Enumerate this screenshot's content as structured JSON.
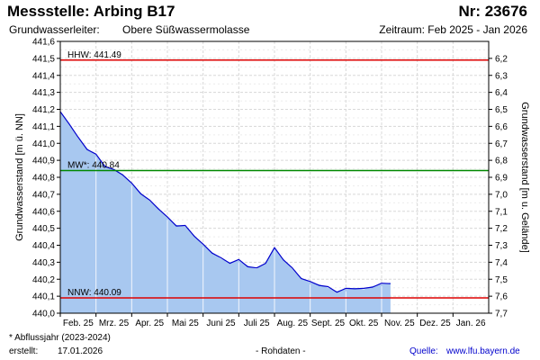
{
  "header": {
    "title": "Messstelle: Arbing B17",
    "number": "Nr: 23676",
    "aquifer_label": "Grundwasserleiter:",
    "aquifer_value": "Obere Süßwassermolasse",
    "period": "Zeitraum: Feb 2025 - Jan 2026"
  },
  "footer": {
    "footnote": "* Abflussjahr (2023-2024)",
    "created_label": "erstellt:",
    "created_date": "17.01.2026",
    "raw_data": "- Rohdaten -",
    "source_label": "Quelle:",
    "source_link": "www.lfu.bayern.de"
  },
  "chart_data": {
    "type": "area",
    "ylabel_left": "Grundwasserstand [m ü. NN]",
    "ylabel_right": "Grundwasserstand [m u. Gelände]",
    "ylim": [
      440.0,
      441.6
    ],
    "right_axis": {
      "ticks": [
        "6,2",
        "6,3",
        "6,4",
        "6,5",
        "6,6",
        "6,7",
        "6,8",
        "6,9",
        "7,0",
        "7,1",
        "7,2",
        "7,3",
        "7,4",
        "7,5",
        "7,6",
        "7,7"
      ],
      "first_tick_level": 441.5,
      "step": -0.1
    },
    "yticks_left": [
      "440,0",
      "440,1",
      "440,2",
      "440,3",
      "440,4",
      "440,5",
      "440,6",
      "440,7",
      "440,8",
      "440,9",
      "441,0",
      "441,1",
      "441,2",
      "441,3",
      "441,4",
      "441,5",
      "441,6"
    ],
    "months": [
      "Feb. 25",
      "Mrz. 25",
      "Apr. 25",
      "Mai 25",
      "Juni 25",
      "Juli 25",
      "Aug. 25",
      "Sept. 25",
      "Okt. 25",
      "Nov. 25",
      "Dez. 25",
      "Jan. 26"
    ],
    "grid": true,
    "colors": {
      "fill": "#a8c8f0",
      "line": "#0000cc",
      "hhw": "#dd0000",
      "nnw": "#dd0000",
      "mw": "#008800"
    },
    "reference_lines": [
      {
        "name": "HHW",
        "label": "HHW: 441.49",
        "value": 441.49
      },
      {
        "name": "MW",
        "label": "MW*: 440.84",
        "value": 440.84
      },
      {
        "name": "NNW",
        "label": "NNW: 440.09",
        "value": 440.09
      }
    ],
    "series": [
      {
        "x_unit": "month index (0 = Feb 2025)",
        "x": [
          0.0,
          0.25,
          0.5,
          0.75,
          1.0,
          1.25,
          1.5,
          1.75,
          2.0,
          2.25,
          2.5,
          2.75,
          3.0,
          3.25,
          3.5,
          3.75,
          4.0,
          4.25,
          4.5,
          4.75,
          5.0,
          5.25,
          5.5,
          5.75,
          6.0,
          6.25,
          6.5,
          6.75,
          7.0,
          7.25,
          7.5,
          7.75,
          8.0,
          8.25,
          8.5,
          8.75,
          9.0,
          9.25
        ],
        "values": [
          441.18,
          441.12,
          441.03,
          440.97,
          440.93,
          440.87,
          440.84,
          440.82,
          440.76,
          440.71,
          440.66,
          440.62,
          440.56,
          440.52,
          440.51,
          440.46,
          440.4,
          440.36,
          440.32,
          440.3,
          440.31,
          440.28,
          440.26,
          440.3,
          440.38,
          440.32,
          440.26,
          440.21,
          440.18,
          440.17,
          440.15,
          440.13,
          440.14,
          440.15,
          440.14,
          440.16,
          440.17,
          440.18
        ]
      }
    ]
  }
}
